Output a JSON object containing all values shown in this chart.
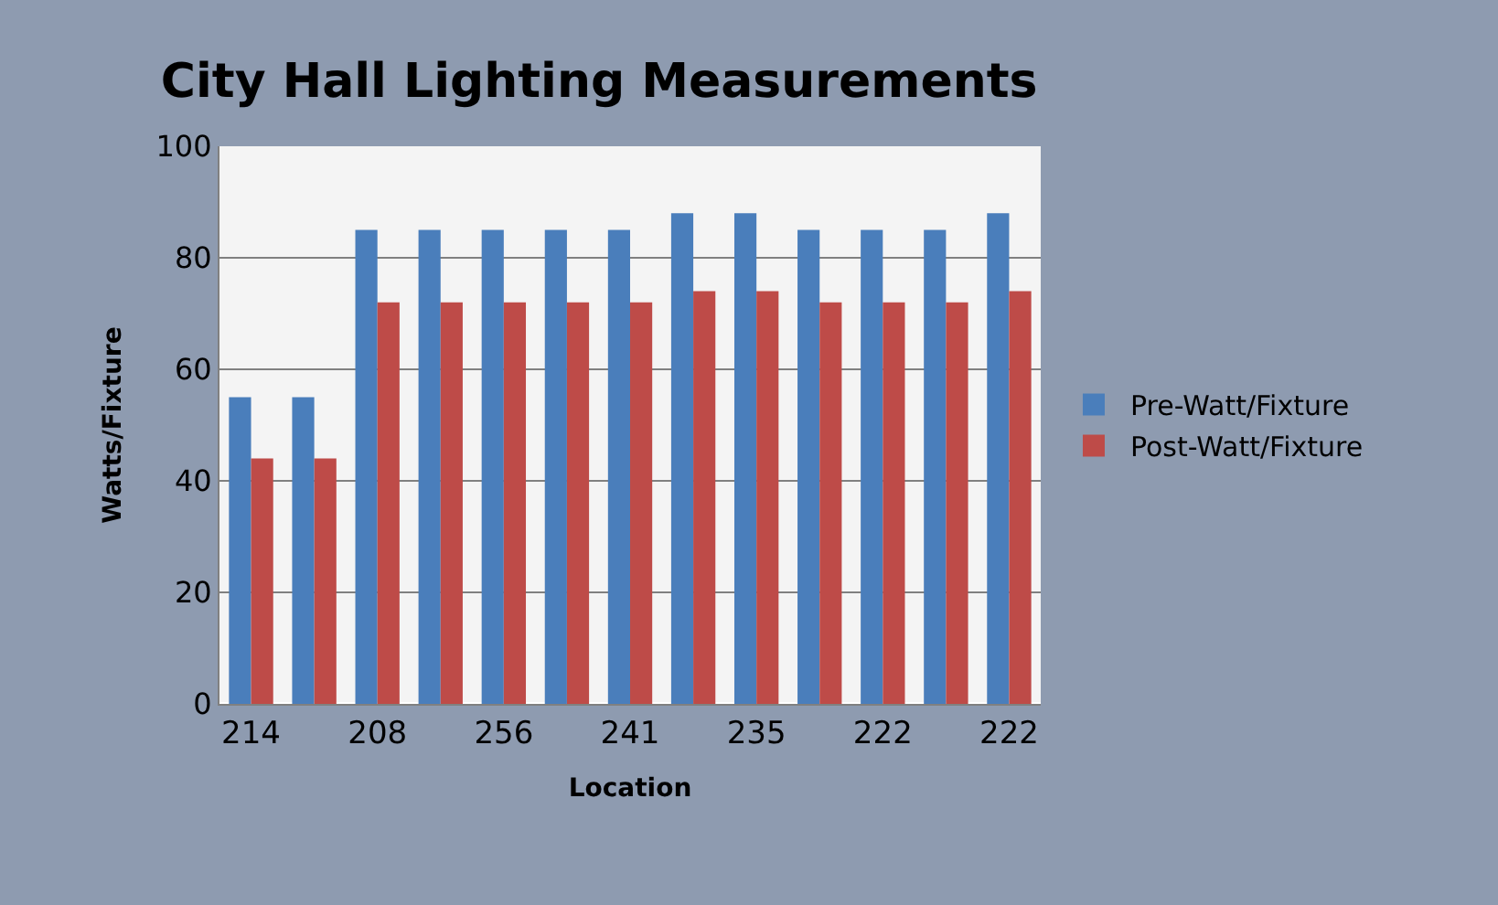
{
  "chart_data": {
    "type": "bar",
    "title": "City Hall Lighting Measurements",
    "xlabel": "Location",
    "ylabel": "Watts/Fixture",
    "categories": [
      "214",
      null,
      "208",
      null,
      "256",
      null,
      "241",
      null,
      "235",
      null,
      "222",
      null,
      "222"
    ],
    "series": [
      {
        "name": "Pre-Watt/Fixture",
        "color": "#4a7ebb",
        "values": [
          55,
          55,
          85,
          85,
          85,
          85,
          85,
          88,
          88,
          85,
          85,
          85,
          88
        ]
      },
      {
        "name": "Post-Watt/Fixture",
        "color": "#be4b48",
        "values": [
          44,
          44,
          72,
          72,
          72,
          72,
          72,
          74,
          74,
          72,
          72,
          72,
          74
        ]
      }
    ],
    "ylim": [
      0,
      100
    ],
    "yticks": [
      0,
      20,
      40,
      60,
      80,
      100
    ],
    "grid": "y",
    "legend": "right"
  }
}
